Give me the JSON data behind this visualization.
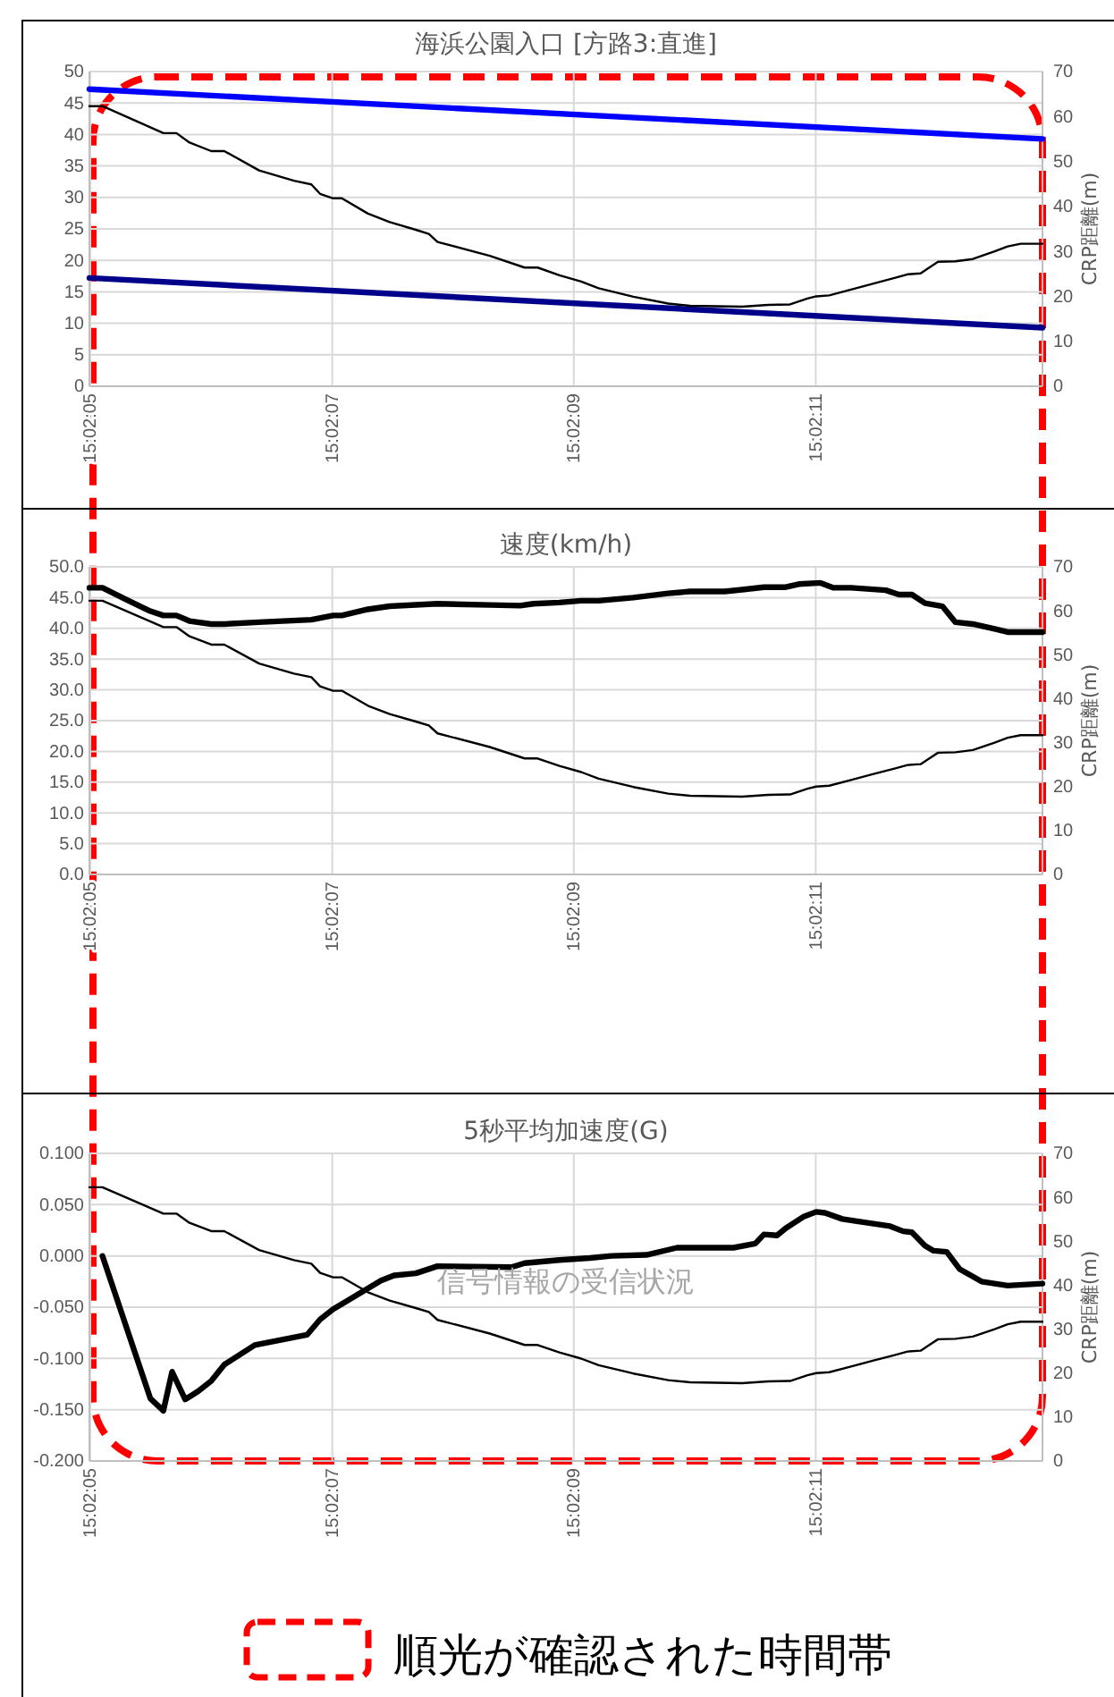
{
  "chart_data": [
    {
      "type": "line",
      "title": "海浜公園入口 [方路3:直進]",
      "y2label": "CRP距離(m)",
      "grid": true,
      "xlim": [
        15.03472,
        15.03691
      ],
      "xticks": [
        {
          "value": 15.034722,
          "label": "15:02:05"
        },
        {
          "value": 15.035278,
          "label": "15:02:07"
        },
        {
          "value": 15.035833,
          "label": "15:02:09"
        },
        {
          "value": 15.036389,
          "label": "15:02:11"
        }
      ],
      "ylim": [
        0,
        50
      ],
      "yticks": [
        0,
        5,
        10,
        15,
        20,
        25,
        30,
        35,
        40,
        45,
        50
      ],
      "y2lim": [
        0,
        70
      ],
      "y2ticks": [
        0,
        10,
        20,
        30,
        40,
        50,
        60,
        70
      ],
      "series": [
        {
          "color": "#0000ff",
          "x": [
            15.03472,
            15.03691
          ],
          "values": [
            47.2,
            39.3
          ]
        },
        {
          "color": "#00008b",
          "x": [
            15.03472,
            15.03691
          ],
          "values": [
            17.2,
            9.3
          ]
        },
        {
          "color": "#000000",
          "axis": "y2",
          "x": [
            15.03472,
            15.03475,
            15.03489,
            15.03492,
            15.03495,
            15.035,
            15.03503,
            15.03511,
            15.03519,
            15.03523,
            15.03525,
            15.03528,
            15.0353,
            15.03536,
            15.03541,
            15.03547,
            15.0355,
            15.03552,
            15.03564,
            15.03572,
            15.03575,
            15.0358,
            15.03585,
            15.03589,
            15.03597,
            15.03605,
            15.0361,
            15.03622,
            15.03628,
            15.03633,
            15.03637,
            15.03639,
            15.03642,
            15.03647,
            15.03652,
            15.03657,
            15.0366,
            15.03663,
            15.03665,
            15.03667,
            15.03671,
            15.03675,
            15.0368,
            15.03683,
            15.03686,
            15.03691
          ],
          "values": [
            62.3,
            62.3,
            56.3,
            56.3,
            54.2,
            52.3,
            52.3,
            48,
            45.7,
            44.9,
            42.8,
            41.8,
            41.8,
            38.4,
            36.5,
            34.8,
            33.9,
            32.1,
            29,
            26.4,
            26.4,
            24.7,
            23.3,
            21.8,
            19.9,
            18.4,
            17.9,
            17.7,
            18.1,
            18.2,
            19.5,
            20,
            20.2,
            21.5,
            22.8,
            24.1,
            24.9,
            25.1,
            26.4,
            27.7,
            27.8,
            28.3,
            30,
            31.1,
            31.7,
            31.7
          ]
        }
      ]
    },
    {
      "type": "line",
      "title": "速度(km/h)",
      "y2label": "CRP距離(m)",
      "grid": true,
      "xlim": [
        15.03472,
        15.03691
      ],
      "xticks": [
        {
          "value": 15.034722,
          "label": "15:02:05"
        },
        {
          "value": 15.035278,
          "label": "15:02:07"
        },
        {
          "value": 15.035833,
          "label": "15:02:09"
        },
        {
          "value": 15.036389,
          "label": "15:02:11"
        }
      ],
      "ylim": [
        0,
        50
      ],
      "yticks": [
        {
          "value": 0,
          "label": "0.0"
        },
        {
          "value": 5,
          "label": "5.0"
        },
        {
          "value": 10,
          "label": "10.0"
        },
        {
          "value": 15,
          "label": "15.0"
        },
        {
          "value": 20,
          "label": "20.0"
        },
        {
          "value": 25,
          "label": "25.0"
        },
        {
          "value": 30,
          "label": "30.0"
        },
        {
          "value": 35,
          "label": "35.0"
        },
        {
          "value": 40,
          "label": "40.0"
        },
        {
          "value": 45,
          "label": "45.0"
        },
        {
          "value": 50,
          "label": "50.0"
        }
      ],
      "y2lim": [
        0,
        70
      ],
      "y2ticks": [
        0,
        10,
        20,
        30,
        40,
        50,
        60,
        70
      ],
      "series": [
        {
          "color": "#000000",
          "x": [
            15.03472,
            15.03475,
            15.03481,
            15.03486,
            15.03489,
            15.03492,
            15.03495,
            15.035,
            15.03503,
            15.03511,
            15.03523,
            15.03528,
            15.0353,
            15.03536,
            15.03541,
            15.03552,
            15.03564,
            15.03571,
            15.03574,
            15.0358,
            15.03585,
            15.03589,
            15.03597,
            15.03605,
            15.0361,
            15.03618,
            15.03622,
            15.03627,
            15.03632,
            15.03635,
            15.0364,
            15.03643,
            15.03647,
            15.03655,
            15.03658,
            15.03661,
            15.03664,
            15.03668,
            15.03671,
            15.03675,
            15.0368,
            15.03683,
            15.03691
          ],
          "values": [
            46.6,
            46.6,
            44.5,
            42.8,
            42.1,
            42.1,
            41.2,
            40.7,
            40.7,
            41,
            41.4,
            42.1,
            42.1,
            43.1,
            43.6,
            44,
            43.8,
            43.7,
            44,
            44.2,
            44.5,
            44.5,
            45,
            45.7,
            46,
            46,
            46.3,
            46.7,
            46.7,
            47.2,
            47.4,
            46.6,
            46.6,
            46.2,
            45.5,
            45.5,
            44.1,
            43.6,
            41,
            40.7,
            39.9,
            39.4,
            39.4
          ]
        },
        {
          "color": "#000000",
          "axis": "y2",
          "x": [
            15.03472,
            15.03475,
            15.03489,
            15.03492,
            15.03495,
            15.035,
            15.03503,
            15.03511,
            15.03519,
            15.03523,
            15.03525,
            15.03528,
            15.0353,
            15.03536,
            15.03541,
            15.03547,
            15.0355,
            15.03552,
            15.03564,
            15.03572,
            15.03575,
            15.0358,
            15.03585,
            15.03589,
            15.03597,
            15.03605,
            15.0361,
            15.03622,
            15.03628,
            15.03633,
            15.03637,
            15.03639,
            15.03642,
            15.03647,
            15.03652,
            15.03657,
            15.0366,
            15.03663,
            15.03665,
            15.03667,
            15.03671,
            15.03675,
            15.0368,
            15.03683,
            15.03686,
            15.03691
          ],
          "values": [
            62.3,
            62.3,
            56.3,
            56.3,
            54.2,
            52.3,
            52.3,
            48,
            45.7,
            44.9,
            42.8,
            41.8,
            41.8,
            38.4,
            36.5,
            34.8,
            33.9,
            32.1,
            29,
            26.4,
            26.4,
            24.7,
            23.3,
            21.8,
            19.9,
            18.4,
            17.9,
            17.7,
            18.1,
            18.2,
            19.5,
            20,
            20.2,
            21.5,
            22.8,
            24.1,
            24.9,
            25.1,
            26.4,
            27.7,
            27.8,
            28.3,
            30,
            31.1,
            31.7,
            31.7
          ]
        }
      ]
    },
    {
      "type": "line",
      "title": "5秒平均加速度(G)",
      "y2label": "CRP距離(m)",
      "grid": true,
      "annotations": [
        "信号情報の受信状況",
        "順光が確認された時間帯"
      ],
      "xlim": [
        15.03472,
        15.03691
      ],
      "xticks": [
        {
          "value": 15.034722,
          "label": "15:02:05"
        },
        {
          "value": 15.035278,
          "label": "15:02:07"
        },
        {
          "value": 15.035833,
          "label": "15:02:09"
        },
        {
          "value": 15.036389,
          "label": "15:02:11"
        }
      ],
      "ylim": [
        -0.2,
        0.1
      ],
      "yticks": [
        {
          "value": -0.2,
          "label": "-0.200"
        },
        {
          "value": -0.15,
          "label": "-0.150"
        },
        {
          "value": -0.1,
          "label": "-0.100"
        },
        {
          "value": -0.05,
          "label": "-0.050"
        },
        {
          "value": 0,
          "label": "0.000"
        },
        {
          "value": 0.05,
          "label": "0.050"
        },
        {
          "value": 0.1,
          "label": "0.100"
        }
      ],
      "y2lim": [
        0,
        70
      ],
      "y2ticks": [
        0,
        10,
        20,
        30,
        40,
        50,
        60,
        70
      ],
      "series": [
        {
          "color": "#000000",
          "x": [
            15.03475,
            15.03486,
            15.03489,
            15.03491,
            15.03494,
            15.03497,
            15.035,
            15.03503,
            15.0351,
            15.03522,
            15.03525,
            15.03528,
            15.0353,
            15.03539,
            15.03542,
            15.03547,
            15.03552,
            15.03569,
            15.03572,
            15.0358,
            15.03587,
            15.03592,
            15.036,
            15.03607,
            15.03613,
            15.0362,
            15.03625,
            15.03627,
            15.0363,
            15.03632,
            15.03636,
            15.03639,
            15.03641,
            15.03645,
            15.03648,
            15.03656,
            15.03659,
            15.03661,
            15.03664,
            15.03666,
            15.03669,
            15.03672,
            15.03677,
            15.03683,
            15.03691
          ],
          "values": [
            0,
            -0.139,
            -0.151,
            -0.113,
            -0.14,
            -0.132,
            -0.122,
            -0.106,
            -0.087,
            -0.077,
            -0.062,
            -0.052,
            -0.047,
            -0.024,
            -0.019,
            -0.017,
            -0.01,
            -0.011,
            -0.007,
            -0.004,
            -0.002,
            0,
            0.001,
            0.008,
            0.008,
            0.008,
            0.012,
            0.021,
            0.02,
            0.027,
            0.038,
            0.043,
            0.042,
            0.036,
            0.034,
            0.029,
            0.024,
            0.023,
            0.01,
            0.005,
            0.004,
            -0.013,
            -0.025,
            -0.029,
            -0.027
          ]
        },
        {
          "color": "#000000",
          "axis": "y2",
          "x": [
            15.03472,
            15.03475,
            15.03489,
            15.03492,
            15.03495,
            15.035,
            15.03503,
            15.03511,
            15.03519,
            15.03523,
            15.03525,
            15.03528,
            15.0353,
            15.03536,
            15.03541,
            15.03547,
            15.0355,
            15.03552,
            15.03564,
            15.03572,
            15.03575,
            15.0358,
            15.03585,
            15.03589,
            15.03597,
            15.03605,
            15.0361,
            15.03622,
            15.03628,
            15.03633,
            15.03637,
            15.03639,
            15.03642,
            15.03647,
            15.03652,
            15.03657,
            15.0366,
            15.03663,
            15.03665,
            15.03667,
            15.03671,
            15.03675,
            15.0368,
            15.03683,
            15.03686,
            15.03691
          ],
          "values": [
            62.3,
            62.3,
            56.3,
            56.3,
            54.2,
            52.3,
            52.3,
            48,
            45.7,
            44.9,
            42.8,
            41.8,
            41.8,
            38.4,
            36.5,
            34.8,
            33.9,
            32.1,
            29,
            26.4,
            26.4,
            24.7,
            23.3,
            21.8,
            19.9,
            18.4,
            17.9,
            17.7,
            18.1,
            18.2,
            19.5,
            20,
            20.2,
            21.5,
            22.8,
            24.1,
            24.9,
            25.1,
            26.4,
            27.7,
            27.8,
            28.3,
            30,
            31.1,
            31.7,
            31.7
          ]
        }
      ]
    }
  ]
}
